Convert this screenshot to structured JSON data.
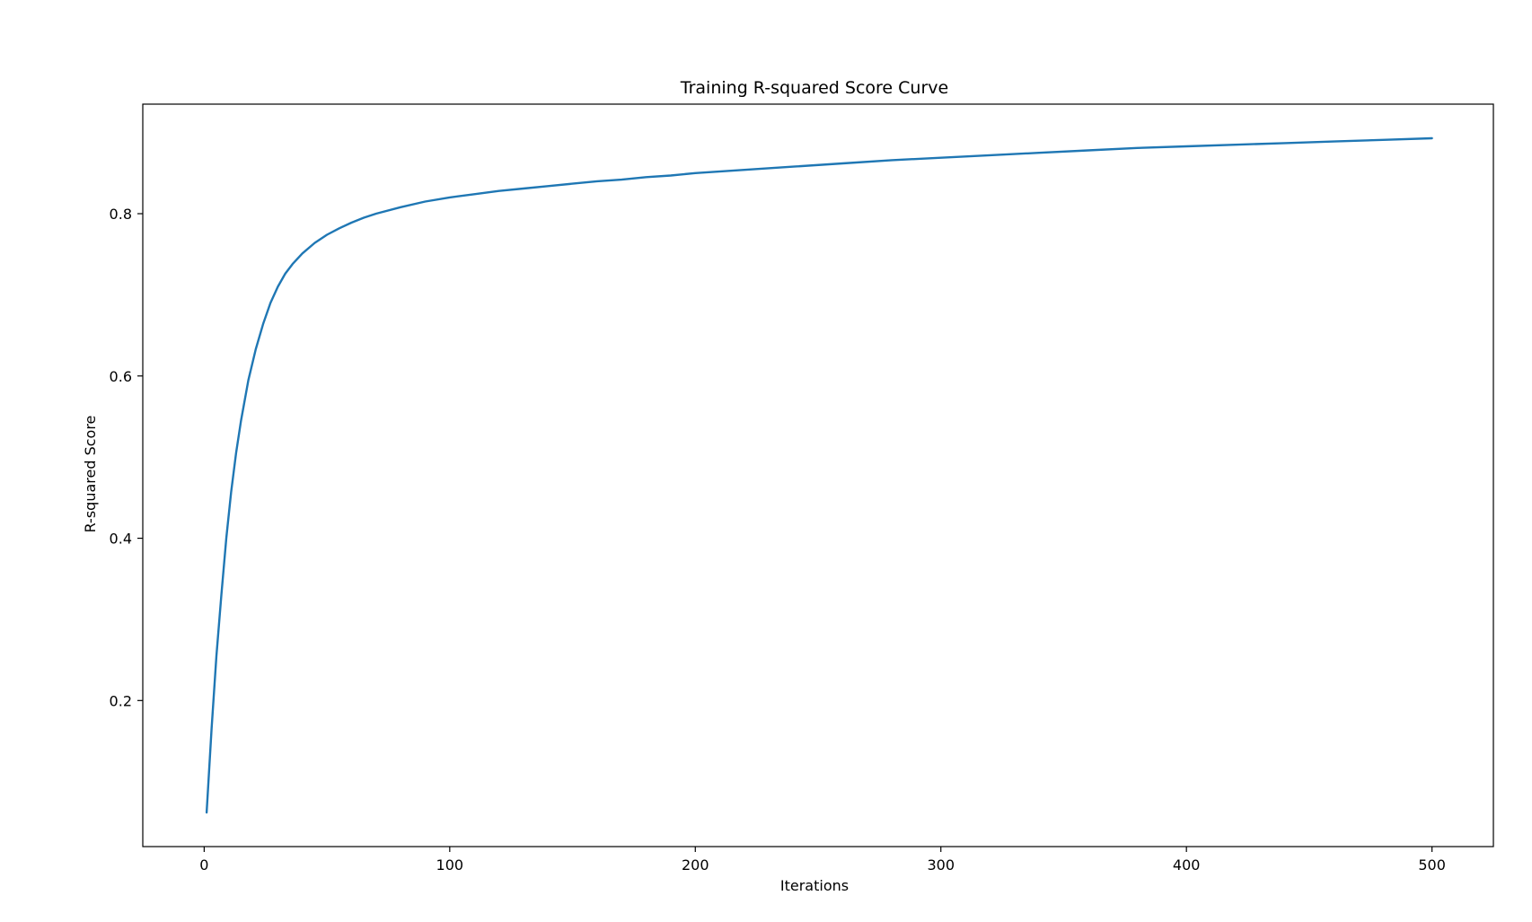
{
  "chart_data": {
    "type": "line",
    "title": "Training R-squared Score Curve",
    "xlabel": "Iterations",
    "ylabel": "R-squared Score",
    "xlim": [
      -25,
      525
    ],
    "ylim": [
      0.02,
      0.935
    ],
    "xticks": [
      0,
      100,
      200,
      300,
      400,
      500
    ],
    "yticks": [
      0.2,
      0.4,
      0.6,
      0.8
    ],
    "xtick_labels": [
      "0",
      "100",
      "200",
      "300",
      "400",
      "500"
    ],
    "ytick_labels": [
      "0.2",
      "0.4",
      "0.6",
      "0.8"
    ],
    "grid": false,
    "legend": "none",
    "series": [
      {
        "color": "#1f77b4",
        "x": [
          1,
          3,
          5,
          7,
          9,
          11,
          13,
          15,
          18,
          21,
          24,
          27,
          30,
          33,
          36,
          40,
          45,
          50,
          55,
          60,
          65,
          70,
          80,
          90,
          100,
          110,
          120,
          130,
          140,
          150,
          160,
          170,
          180,
          190,
          200,
          220,
          240,
          260,
          280,
          300,
          320,
          340,
          360,
          380,
          400,
          420,
          440,
          460,
          480,
          500
        ],
        "y": [
          0.062,
          0.165,
          0.255,
          0.33,
          0.4,
          0.457,
          0.505,
          0.545,
          0.595,
          0.633,
          0.664,
          0.69,
          0.71,
          0.726,
          0.738,
          0.751,
          0.764,
          0.774,
          0.782,
          0.789,
          0.795,
          0.8,
          0.808,
          0.815,
          0.82,
          0.824,
          0.828,
          0.831,
          0.834,
          0.837,
          0.84,
          0.842,
          0.845,
          0.847,
          0.85,
          0.854,
          0.858,
          0.862,
          0.866,
          0.869,
          0.872,
          0.875,
          0.878,
          0.881,
          0.883,
          0.885,
          0.887,
          0.889,
          0.891,
          0.893
        ]
      }
    ]
  }
}
